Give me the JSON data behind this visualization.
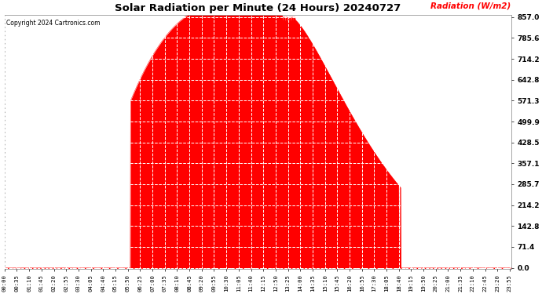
{
  "title": "Solar Radiation per Minute (24 Hours) 20240727",
  "copyright": "Copyright 2024 Cartronics.com",
  "ylabel": "Radiation (W/m2)",
  "ylabel_color": "red",
  "background_color": "#ffffff",
  "plot_bg_color": "#ffffff",
  "fill_color": "red",
  "line_color": "red",
  "dashed_line_color": "red",
  "yticks": [
    0.0,
    71.4,
    142.8,
    214.2,
    285.7,
    357.1,
    428.5,
    499.9,
    571.3,
    642.8,
    714.2,
    785.6,
    857.0
  ],
  "ymax": 857.0,
  "ymin": 0.0,
  "peak_value": 857.0,
  "sunrise_minutes": 358,
  "sunset_minutes": 1125,
  "peak_minutes": 815,
  "total_minutes": 1440,
  "label_step": 35,
  "figwidth": 6.9,
  "figheight": 3.75,
  "dpi": 100
}
